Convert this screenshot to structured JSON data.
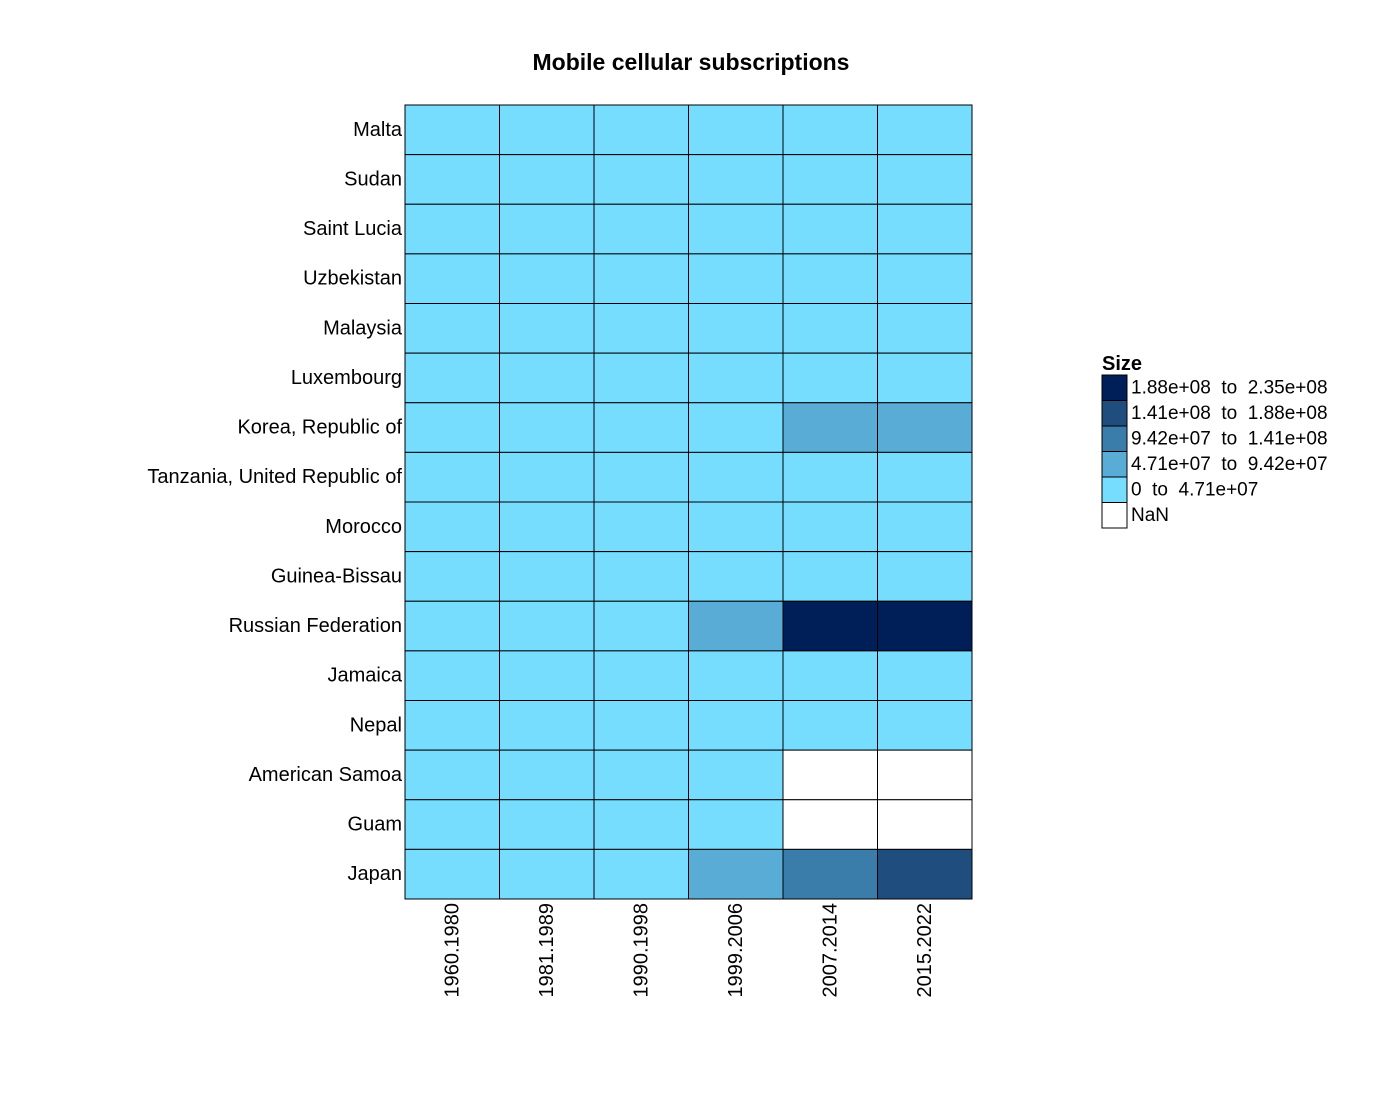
{
  "chart_data": {
    "type": "heatmap",
    "title": "Mobile cellular subscriptions",
    "xlabel": "",
    "ylabel": "",
    "rows": [
      "Malta",
      "Sudan",
      "Saint Lucia",
      "Uzbekistan",
      "Malaysia",
      "Luxembourg",
      "Korea, Republic of",
      "Tanzania, United Republic of",
      "Morocco",
      "Guinea-Bissau",
      "Russian Federation",
      "Jamaica",
      "Nepal",
      "American Samoa",
      "Guam",
      "Japan"
    ],
    "columns": [
      "1960.1980",
      "1981.1989",
      "1990.1998",
      "1999.2006",
      "2007.2014",
      "2015.2022"
    ],
    "cells": [
      [
        0,
        0,
        0,
        0,
        0,
        0
      ],
      [
        0,
        0,
        0,
        0,
        0,
        0
      ],
      [
        0,
        0,
        0,
        0,
        0,
        0
      ],
      [
        0,
        0,
        0,
        0,
        0,
        0
      ],
      [
        0,
        0,
        0,
        0,
        0,
        0
      ],
      [
        0,
        0,
        0,
        0,
        0,
        0
      ],
      [
        0,
        0,
        0,
        0,
        1,
        1
      ],
      [
        0,
        0,
        0,
        0,
        0,
        0
      ],
      [
        0,
        0,
        0,
        0,
        0,
        0
      ],
      [
        0,
        0,
        0,
        0,
        0,
        0
      ],
      [
        0,
        0,
        0,
        1,
        4,
        4
      ],
      [
        0,
        0,
        0,
        0,
        0,
        0
      ],
      [
        0,
        0,
        0,
        0,
        0,
        0
      ],
      [
        0,
        0,
        0,
        0,
        null,
        null
      ],
      [
        0,
        0,
        0,
        0,
        null,
        null
      ],
      [
        0,
        0,
        0,
        1,
        2,
        3
      ]
    ],
    "cell_encoding": "bin index into legend.bins (0 = lowest); null = NaN",
    "legend": {
      "title": "Size",
      "placement": "right",
      "bins": [
        {
          "label": "0  to  4.71e+07",
          "min": 0,
          "max": 47100000,
          "color": "#76DDFF"
        },
        {
          "label": "4.71e+07  to  9.42e+07",
          "min": 47100000,
          "max": 94200000,
          "color": "#58ACD6"
        },
        {
          "label": "9.42e+07  to  1.41e+08",
          "min": 94200000,
          "max": 141000000,
          "color": "#3A7CAA"
        },
        {
          "label": "1.41e+08  to  1.88e+08",
          "min": 141000000,
          "max": 188000000,
          "color": "#1F4E7E"
        },
        {
          "label": "1.88e+08  to  2.35e+08",
          "min": 188000000,
          "max": 235000000,
          "color": "#001E57"
        }
      ],
      "nan": {
        "label": "NaN",
        "color": "#FFFFFF"
      }
    }
  }
}
